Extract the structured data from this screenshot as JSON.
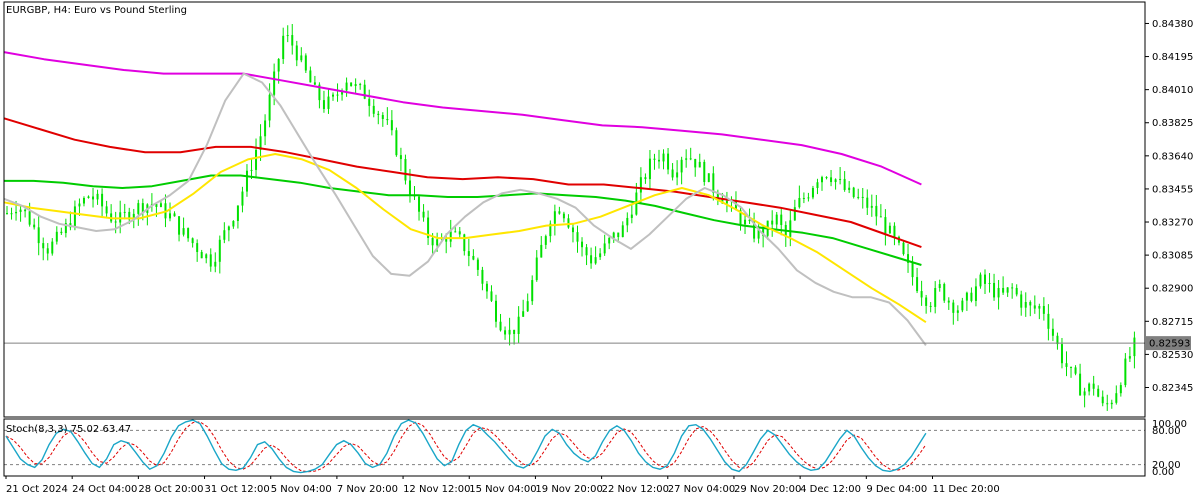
{
  "chart_data": {
    "type": "candlestick",
    "title": "EURGBP, H4:  Euro vs Pound Sterling",
    "symbol": "EURGBP",
    "timeframe": "H4",
    "background": "#ffffff",
    "colors": {
      "candle": "#00e000",
      "ma_fast": "#c0c0c0",
      "ma_yellow": "#ffe600",
      "ma_green": "#00cc00",
      "ma_red": "#e00000",
      "ma_magenta": "#e000e0",
      "stoch_main": "#1aa6c8",
      "stoch_signal": "#e00000",
      "current_price_line": "#808080",
      "price_tag_bg": "#808080",
      "price_tag_text": "#ffffff"
    },
    "ylim": [
      0.8218,
      0.845
    ],
    "y_ticks": [
      "0.84380",
      "0.84195",
      "0.84010",
      "0.83825",
      "0.83640",
      "0.83455",
      "0.83270",
      "0.83085",
      "0.82900",
      "0.82715",
      "0.82530",
      "0.82345"
    ],
    "current_price": "0.82593",
    "x_labels": [
      "21 Oct 2024",
      "24 Oct 04:00",
      "28 Oct 20:00",
      "31 Oct 12:00",
      "5 Nov 04:00",
      "7 Nov 20:00",
      "12 Nov 12:00",
      "15 Nov 04:00",
      "19 Nov 20:00",
      "22 Nov 12:00",
      "27 Nov 04:00",
      "29 Nov 20:00",
      "4 Dec 12:00",
      "9 Dec 04:00",
      "11 Dec 20:00"
    ],
    "price_path": [
      0.8332,
      0.8337,
      0.833,
      0.832,
      0.8312,
      0.8318,
      0.8326,
      0.8336,
      0.8342,
      0.8338,
      0.833,
      0.8328,
      0.8333,
      0.8336,
      0.8338,
      0.8334,
      0.833,
      0.8322,
      0.8316,
      0.831,
      0.8305,
      0.8318,
      0.833,
      0.8345,
      0.8362,
      0.838,
      0.8405,
      0.8432,
      0.8425,
      0.8412,
      0.84,
      0.8392,
      0.8396,
      0.8408,
      0.8402,
      0.8398,
      0.839,
      0.8382,
      0.8368,
      0.835,
      0.8335,
      0.832,
      0.8315,
      0.832,
      0.8318,
      0.831,
      0.83,
      0.8285,
      0.8272,
      0.8265,
      0.827,
      0.8288,
      0.831,
      0.833,
      0.8336,
      0.8325,
      0.8312,
      0.8306,
      0.831,
      0.8318,
      0.8322,
      0.8336,
      0.835,
      0.8362,
      0.8365,
      0.8355,
      0.8366,
      0.8362,
      0.8354,
      0.8345,
      0.834,
      0.8333,
      0.8326,
      0.832,
      0.8322,
      0.833,
      0.8318,
      0.8336,
      0.8342,
      0.8352,
      0.8355,
      0.835,
      0.8343,
      0.834,
      0.8336,
      0.833,
      0.8322,
      0.8312,
      0.83,
      0.829,
      0.8282,
      0.829,
      0.8282,
      0.8278,
      0.8286,
      0.8294,
      0.829,
      0.8285,
      0.829,
      0.8282,
      0.8278,
      0.828,
      0.8265,
      0.825,
      0.824,
      0.8232,
      0.8236,
      0.8222,
      0.823,
      0.8245,
      0.8258
    ],
    "indicators": {
      "ma_fast": [
        0.834,
        0.8336,
        0.833,
        0.8326,
        0.8324,
        0.8322,
        0.8323,
        0.8328,
        0.8336,
        0.8342,
        0.835,
        0.837,
        0.8395,
        0.841,
        0.8405,
        0.8392,
        0.8375,
        0.8358,
        0.8342,
        0.8325,
        0.8308,
        0.8298,
        0.8297,
        0.8305,
        0.832,
        0.833,
        0.8338,
        0.8343,
        0.8345,
        0.8343,
        0.834,
        0.8335,
        0.8325,
        0.8318,
        0.8312,
        0.832,
        0.833,
        0.834,
        0.8346,
        0.8342,
        0.8335,
        0.8322,
        0.8312,
        0.83,
        0.8293,
        0.8288,
        0.8285,
        0.8285,
        0.8282,
        0.8272,
        0.8258
      ],
      "ma_yellow": [
        0.8338,
        0.8335,
        0.8333,
        0.8331,
        0.8329,
        0.8329,
        0.8333,
        0.8343,
        0.8355,
        0.8362,
        0.8365,
        0.8362,
        0.8356,
        0.8346,
        0.8334,
        0.8323,
        0.8318,
        0.8318,
        0.832,
        0.8322,
        0.8325,
        0.8326,
        0.833,
        0.8336,
        0.8342,
        0.8346,
        0.8342,
        0.8334,
        0.8325,
        0.8318,
        0.831,
        0.83,
        0.829,
        0.8281,
        0.8271
      ],
      "ma_green": [
        0.835,
        0.835,
        0.8349,
        0.8347,
        0.8346,
        0.8347,
        0.835,
        0.8353,
        0.8353,
        0.8351,
        0.8349,
        0.8346,
        0.8344,
        0.8342,
        0.8342,
        0.8341,
        0.8341,
        0.8342,
        0.8343,
        0.8342,
        0.8341,
        0.8339,
        0.8336,
        0.8332,
        0.8328,
        0.8325,
        0.8323,
        0.8321,
        0.8318,
        0.8313,
        0.8308,
        0.8303
      ],
      "ma_red": [
        0.8385,
        0.8379,
        0.8373,
        0.8369,
        0.8366,
        0.8366,
        0.8369,
        0.8369,
        0.8366,
        0.8362,
        0.8358,
        0.8355,
        0.8352,
        0.8351,
        0.8352,
        0.8351,
        0.8348,
        0.8348,
        0.8346,
        0.8344,
        0.8341,
        0.8338,
        0.8335,
        0.8331,
        0.8327,
        0.832,
        0.8313
      ],
      "ma_magenta": [
        0.8422,
        0.8418,
        0.8415,
        0.8412,
        0.841,
        0.841,
        0.841,
        0.8406,
        0.8402,
        0.8398,
        0.8394,
        0.8391,
        0.8389,
        0.8387,
        0.8384,
        0.8381,
        0.838,
        0.8378,
        0.8376,
        0.8373,
        0.837,
        0.8365,
        0.8358,
        0.8348
      ]
    },
    "stochastic": {
      "label": "Stoch(8,3,3) 75.02 63.47",
      "params": "8,3,3",
      "main_value": 75.02,
      "signal_value": 63.47,
      "levels": [
        "80.00",
        "20.00"
      ],
      "ylim": [
        0,
        100
      ],
      "axis_labels": [
        "100.00",
        "80.00",
        "20.00",
        "0.00"
      ],
      "main": [
        70,
        50,
        30,
        20,
        15,
        28,
        55,
        75,
        82,
        78,
        60,
        40,
        22,
        15,
        30,
        55,
        62,
        58,
        42,
        25,
        12,
        18,
        40,
        68,
        88,
        95,
        98,
        92,
        70,
        45,
        22,
        12,
        10,
        14,
        32,
        55,
        60,
        48,
        30,
        15,
        8,
        6,
        8,
        12,
        20,
        38,
        55,
        62,
        55,
        40,
        22,
        15,
        20,
        40,
        70,
        92,
        98,
        93,
        75,
        52,
        30,
        18,
        25,
        55,
        80,
        90,
        85,
        72,
        60,
        45,
        30,
        18,
        14,
        22,
        45,
        70,
        82,
        75,
        55,
        40,
        30,
        25,
        35,
        60,
        80,
        88,
        80,
        62,
        40,
        25,
        15,
        12,
        18,
        40,
        70,
        88,
        90,
        82,
        65,
        45,
        25,
        12,
        8,
        20,
        42,
        65,
        80,
        72,
        55,
        38,
        25,
        15,
        10,
        12,
        25,
        45,
        65,
        80,
        70,
        50,
        32,
        18,
        10,
        8,
        12,
        20,
        35,
        55,
        75
      ]
    }
  }
}
